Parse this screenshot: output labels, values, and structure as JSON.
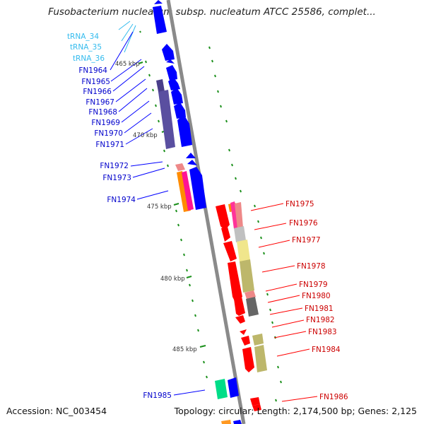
{
  "title": "Fusobacterium nucleatum subsp. nucleatum ATCC 25586, complet...",
  "footer": {
    "accession": "Accession: NC_003454",
    "stats": "Topology: circular; Length: 2,174,500 bp; Genes: 2,125"
  },
  "colors": {
    "backbone": "#8a8a8a",
    "forward_strand": "#0000ff",
    "reverse_strand": "#ff0000",
    "trna": "#33bbee",
    "tick": "#1a8f1a"
  },
  "scale_labels": [
    "465 kbp",
    "470 kbp",
    "475 kbp",
    "480 kbp",
    "485 kbp"
  ],
  "left_labels": [
    "tRNA_34",
    "tRNA_35",
    "tRNA_36",
    "FN1964",
    "FN1965",
    "FN1966",
    "FN1967",
    "FN1968",
    "FN1969",
    "FN1970",
    "FN1971",
    "FN1972",
    "FN1973",
    "FN1974",
    "FN1985"
  ],
  "right_labels": [
    "FN1975",
    "FN1976",
    "FN1977",
    "FN1978",
    "FN1979",
    "FN1980",
    "FN1981",
    "FN1982",
    "FN1983",
    "FN1984",
    "FN1986"
  ]
}
